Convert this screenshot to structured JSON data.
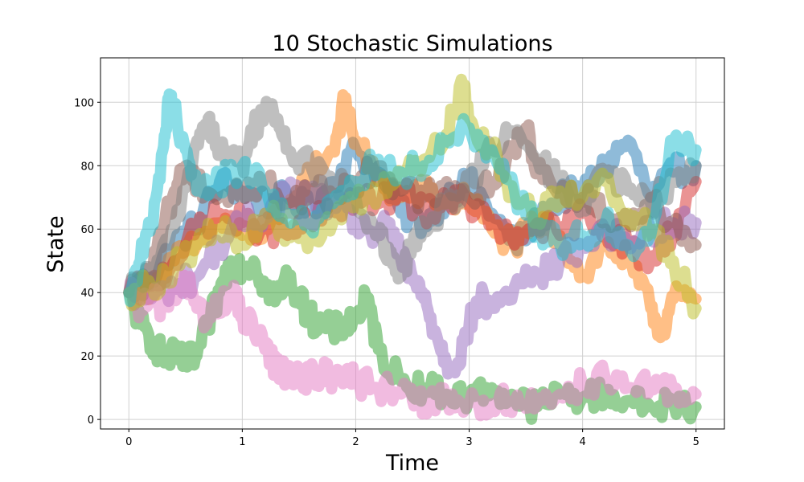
{
  "chart_data": {
    "type": "line",
    "title": "10 Stochastic Simulations",
    "xlabel": "Time",
    "ylabel": "State",
    "xlim": [
      -0.25,
      5.25
    ],
    "ylim": [
      -3,
      114
    ],
    "xticks": [
      0,
      1,
      2,
      3,
      4,
      5
    ],
    "yticks": [
      0,
      20,
      40,
      60,
      80,
      100
    ],
    "grid": true,
    "series": [
      {
        "color": "#1f77b4",
        "points": [
          [
            0,
            40
          ],
          [
            0.2,
            45
          ],
          [
            0.4,
            55
          ],
          [
            0.6,
            62
          ],
          [
            0.8,
            75
          ],
          [
            1.0,
            72
          ],
          [
            1.2,
            68
          ],
          [
            1.4,
            70
          ],
          [
            1.6,
            66
          ],
          [
            1.8,
            75
          ],
          [
            2.0,
            85
          ],
          [
            2.2,
            78
          ],
          [
            2.4,
            65
          ],
          [
            2.6,
            62
          ],
          [
            2.8,
            70
          ],
          [
            3.0,
            75
          ],
          [
            3.2,
            65
          ],
          [
            3.4,
            55
          ],
          [
            3.6,
            62
          ],
          [
            3.8,
            70
          ],
          [
            4.0,
            72
          ],
          [
            4.2,
            80
          ],
          [
            4.4,
            88
          ],
          [
            4.6,
            70
          ],
          [
            4.8,
            78
          ],
          [
            5.0,
            80
          ]
        ]
      },
      {
        "color": "#ff7f0e",
        "points": [
          [
            0,
            40
          ],
          [
            0.2,
            42
          ],
          [
            0.4,
            50
          ],
          [
            0.6,
            55
          ],
          [
            0.8,
            62
          ],
          [
            1.0,
            58
          ],
          [
            1.2,
            60
          ],
          [
            1.4,
            65
          ],
          [
            1.6,
            78
          ],
          [
            1.8,
            85
          ],
          [
            1.9,
            100
          ],
          [
            2.0,
            88
          ],
          [
            2.2,
            75
          ],
          [
            2.4,
            70
          ],
          [
            2.6,
            72
          ],
          [
            2.8,
            68
          ],
          [
            3.0,
            70
          ],
          [
            3.2,
            60
          ],
          [
            3.4,
            55
          ],
          [
            3.6,
            62
          ],
          [
            3.8,
            58
          ],
          [
            4.0,
            45
          ],
          [
            4.2,
            55
          ],
          [
            4.4,
            50
          ],
          [
            4.6,
            35
          ],
          [
            4.7,
            28
          ],
          [
            4.8,
            38
          ],
          [
            5.0,
            38
          ]
        ]
      },
      {
        "color": "#2ca02c",
        "points": [
          [
            0,
            40
          ],
          [
            0.1,
            30
          ],
          [
            0.2,
            25
          ],
          [
            0.3,
            20
          ],
          [
            0.4,
            20
          ],
          [
            0.5,
            18
          ],
          [
            0.6,
            20
          ],
          [
            0.7,
            30
          ],
          [
            0.8,
            40
          ],
          [
            0.9,
            50
          ],
          [
            1.0,
            48
          ],
          [
            1.1,
            50
          ],
          [
            1.2,
            42
          ],
          [
            1.3,
            38
          ],
          [
            1.4,
            45
          ],
          [
            1.5,
            38
          ],
          [
            1.6,
            32
          ],
          [
            1.7,
            30
          ],
          [
            1.8,
            28
          ],
          [
            1.9,
            30
          ],
          [
            2.0,
            32
          ],
          [
            2.1,
            38
          ],
          [
            2.2,
            22
          ],
          [
            2.4,
            12
          ],
          [
            2.6,
            10
          ],
          [
            2.8,
            8
          ],
          [
            3.0,
            7
          ],
          [
            3.2,
            10
          ],
          [
            3.4,
            6
          ],
          [
            3.6,
            4
          ],
          [
            3.8,
            8
          ],
          [
            4.0,
            7
          ],
          [
            4.2,
            8
          ],
          [
            4.4,
            6
          ],
          [
            4.6,
            4
          ],
          [
            4.8,
            5
          ],
          [
            5.0,
            4
          ]
        ]
      },
      {
        "color": "#d62728",
        "points": [
          [
            0,
            40
          ],
          [
            0.2,
            42
          ],
          [
            0.4,
            50
          ],
          [
            0.6,
            60
          ],
          [
            0.8,
            65
          ],
          [
            1.0,
            62
          ],
          [
            1.2,
            60
          ],
          [
            1.4,
            58
          ],
          [
            1.6,
            62
          ],
          [
            1.8,
            66
          ],
          [
            2.0,
            70
          ],
          [
            2.2,
            68
          ],
          [
            2.4,
            72
          ],
          [
            2.6,
            65
          ],
          [
            2.8,
            70
          ],
          [
            3.0,
            68
          ],
          [
            3.2,
            62
          ],
          [
            3.4,
            55
          ],
          [
            3.6,
            62
          ],
          [
            3.8,
            58
          ],
          [
            4.0,
            65
          ],
          [
            4.2,
            60
          ],
          [
            4.4,
            55
          ],
          [
            4.6,
            50
          ],
          [
            4.8,
            60
          ],
          [
            5.0,
            75
          ]
        ]
      },
      {
        "color": "#9467bd",
        "points": [
          [
            0,
            40
          ],
          [
            0.2,
            38
          ],
          [
            0.4,
            42
          ],
          [
            0.6,
            45
          ],
          [
            0.8,
            55
          ],
          [
            1.0,
            62
          ],
          [
            1.2,
            65
          ],
          [
            1.4,
            72
          ],
          [
            1.6,
            70
          ],
          [
            1.8,
            68
          ],
          [
            2.0,
            62
          ],
          [
            2.2,
            58
          ],
          [
            2.3,
            62
          ],
          [
            2.4,
            50
          ],
          [
            2.5,
            45
          ],
          [
            2.6,
            38
          ],
          [
            2.7,
            28
          ],
          [
            2.8,
            18
          ],
          [
            2.9,
            18
          ],
          [
            3.0,
            30
          ],
          [
            3.1,
            38
          ],
          [
            3.2,
            35
          ],
          [
            3.4,
            42
          ],
          [
            3.6,
            45
          ],
          [
            3.8,
            50
          ],
          [
            4.0,
            55
          ],
          [
            4.2,
            60
          ],
          [
            4.4,
            55
          ],
          [
            4.6,
            60
          ],
          [
            4.8,
            62
          ],
          [
            5.0,
            62
          ]
        ]
      },
      {
        "color": "#8c564b",
        "points": [
          [
            0,
            40
          ],
          [
            0.2,
            45
          ],
          [
            0.3,
            60
          ],
          [
            0.4,
            72
          ],
          [
            0.5,
            80
          ],
          [
            0.6,
            75
          ],
          [
            0.8,
            70
          ],
          [
            1.0,
            72
          ],
          [
            1.2,
            75
          ],
          [
            1.4,
            68
          ],
          [
            1.6,
            72
          ],
          [
            1.8,
            70
          ],
          [
            2.0,
            75
          ],
          [
            2.2,
            80
          ],
          [
            2.4,
            72
          ],
          [
            2.6,
            70
          ],
          [
            2.8,
            75
          ],
          [
            3.0,
            70
          ],
          [
            3.2,
            75
          ],
          [
            3.4,
            85
          ],
          [
            3.5,
            92
          ],
          [
            3.6,
            80
          ],
          [
            3.8,
            72
          ],
          [
            4.0,
            70
          ],
          [
            4.2,
            65
          ],
          [
            4.4,
            62
          ],
          [
            4.6,
            70
          ],
          [
            4.8,
            62
          ],
          [
            5.0,
            55
          ]
        ]
      },
      {
        "color": "#e377c2",
        "points": [
          [
            0,
            40
          ],
          [
            0.1,
            35
          ],
          [
            0.2,
            38
          ],
          [
            0.3,
            36
          ],
          [
            0.4,
            40
          ],
          [
            0.5,
            45
          ],
          [
            0.6,
            35
          ],
          [
            0.7,
            32
          ],
          [
            0.8,
            36
          ],
          [
            0.9,
            40
          ],
          [
            1.0,
            33
          ],
          [
            1.1,
            28
          ],
          [
            1.2,
            22
          ],
          [
            1.3,
            16
          ],
          [
            1.4,
            15
          ],
          [
            1.5,
            14
          ],
          [
            1.6,
            13
          ],
          [
            1.7,
            14
          ],
          [
            1.8,
            14
          ],
          [
            1.9,
            15
          ],
          [
            2.0,
            12
          ],
          [
            2.2,
            10
          ],
          [
            2.4,
            8
          ],
          [
            2.5,
            6
          ],
          [
            2.6,
            5
          ],
          [
            2.8,
            6
          ],
          [
            3.0,
            5
          ],
          [
            3.2,
            5
          ],
          [
            3.4,
            6
          ],
          [
            3.6,
            5
          ],
          [
            3.8,
            8
          ],
          [
            4.0,
            11
          ],
          [
            4.2,
            13
          ],
          [
            4.4,
            10
          ],
          [
            4.6,
            10
          ],
          [
            4.8,
            9
          ],
          [
            5.0,
            8
          ]
        ]
      },
      {
        "color": "#7f7f7f",
        "points": [
          [
            0,
            40
          ],
          [
            0.2,
            45
          ],
          [
            0.4,
            60
          ],
          [
            0.6,
            88
          ],
          [
            0.7,
            95
          ],
          [
            0.8,
            85
          ],
          [
            1.0,
            80
          ],
          [
            1.1,
            92
          ],
          [
            1.2,
            98
          ],
          [
            1.3,
            95
          ],
          [
            1.4,
            85
          ],
          [
            1.6,
            80
          ],
          [
            1.8,
            75
          ],
          [
            2.0,
            70
          ],
          [
            2.2,
            58
          ],
          [
            2.3,
            50
          ],
          [
            2.4,
            45
          ],
          [
            2.5,
            55
          ],
          [
            2.6,
            60
          ],
          [
            2.8,
            68
          ],
          [
            3.0,
            75
          ],
          [
            3.2,
            85
          ],
          [
            3.4,
            90
          ],
          [
            3.6,
            82
          ],
          [
            3.8,
            75
          ],
          [
            4.0,
            68
          ],
          [
            4.2,
            78
          ],
          [
            4.4,
            72
          ],
          [
            4.6,
            68
          ],
          [
            4.8,
            75
          ],
          [
            5.0,
            80
          ]
        ]
      },
      {
        "color": "#bcbd22",
        "points": [
          [
            0,
            40
          ],
          [
            0.2,
            42
          ],
          [
            0.4,
            48
          ],
          [
            0.6,
            55
          ],
          [
            0.8,
            60
          ],
          [
            1.0,
            55
          ],
          [
            1.2,
            65
          ],
          [
            1.4,
            60
          ],
          [
            1.6,
            58
          ],
          [
            1.8,
            62
          ],
          [
            2.0,
            68
          ],
          [
            2.2,
            72
          ],
          [
            2.4,
            78
          ],
          [
            2.6,
            82
          ],
          [
            2.8,
            90
          ],
          [
            2.95,
            105
          ],
          [
            3.0,
            95
          ],
          [
            3.2,
            85
          ],
          [
            3.4,
            70
          ],
          [
            3.6,
            65
          ],
          [
            3.8,
            72
          ],
          [
            4.0,
            70
          ],
          [
            4.2,
            75
          ],
          [
            4.4,
            65
          ],
          [
            4.6,
            60
          ],
          [
            4.8,
            50
          ],
          [
            5.0,
            35
          ]
        ]
      },
      {
        "color": "#17becf",
        "points": [
          [
            0,
            40
          ],
          [
            0.1,
            50
          ],
          [
            0.2,
            62
          ],
          [
            0.3,
            85
          ],
          [
            0.35,
            100
          ],
          [
            0.4,
            98
          ],
          [
            0.5,
            85
          ],
          [
            0.6,
            72
          ],
          [
            0.8,
            75
          ],
          [
            1.0,
            80
          ],
          [
            1.2,
            72
          ],
          [
            1.4,
            65
          ],
          [
            1.6,
            60
          ],
          [
            1.8,
            68
          ],
          [
            2.0,
            75
          ],
          [
            2.2,
            82
          ],
          [
            2.4,
            78
          ],
          [
            2.6,
            80
          ],
          [
            2.8,
            88
          ],
          [
            3.0,
            92
          ],
          [
            3.2,
            85
          ],
          [
            3.4,
            72
          ],
          [
            3.6,
            60
          ],
          [
            3.8,
            55
          ],
          [
            4.0,
            58
          ],
          [
            4.2,
            62
          ],
          [
            4.4,
            55
          ],
          [
            4.6,
            58
          ],
          [
            4.8,
            88
          ],
          [
            5.0,
            85
          ]
        ]
      }
    ]
  }
}
